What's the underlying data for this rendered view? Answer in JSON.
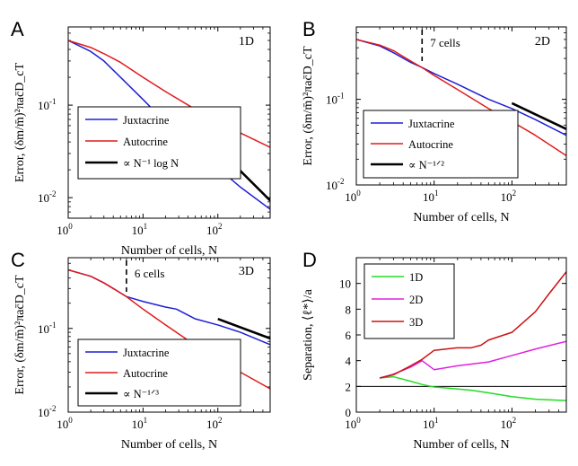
{
  "chart_data": [
    {
      "type": "line",
      "panel": "A",
      "dimension": "1D",
      "xlabel": "Number of cells, N",
      "ylabel": "Error, (δm/m̄)²πac̄D_cT",
      "xscale": "log",
      "yscale": "log",
      "xlim": [
        1,
        500
      ],
      "ylim": [
        0.006,
        0.7
      ],
      "xticks": [
        {
          "v": 1,
          "label": "10",
          "exp": "0"
        },
        {
          "v": 10,
          "label": "10",
          "exp": "1"
        },
        {
          "v": 100,
          "label": "10",
          "exp": "2"
        }
      ],
      "yticks": [
        {
          "v": 0.01,
          "label": "10",
          "exp": "-2"
        },
        {
          "v": 0.1,
          "label": "10",
          "exp": "-1"
        }
      ],
      "legend_position": "bottom-left",
      "series": [
        {
          "name": "Juxtacrine",
          "color": "#1f1fd6",
          "x": [
            1,
            2,
            3,
            5,
            10,
            20,
            50,
            100,
            200,
            500
          ],
          "y": [
            0.5,
            0.38,
            0.3,
            0.2,
            0.115,
            0.065,
            0.032,
            0.021,
            0.013,
            0.0075
          ]
        },
        {
          "name": "Autocrine",
          "color": "#e01b1b",
          "x": [
            1,
            2,
            3,
            5,
            10,
            20,
            50,
            100,
            200,
            500
          ],
          "y": [
            0.5,
            0.42,
            0.36,
            0.29,
            0.2,
            0.14,
            0.09,
            0.067,
            0.05,
            0.035
          ]
        },
        {
          "name": "∝ N⁻¹ log N",
          "color": "#000000",
          "x": [
            100,
            500
          ],
          "y": [
            0.034,
            0.0093
          ]
        }
      ],
      "annotations": []
    },
    {
      "type": "line",
      "panel": "B",
      "dimension": "2D",
      "xlabel": "Number of cells, N",
      "ylabel": "Error, (δm/m̄)²πac̄D_cT",
      "xscale": "log",
      "yscale": "log",
      "xlim": [
        1,
        500
      ],
      "ylim": [
        0.01,
        0.7
      ],
      "xticks": [
        {
          "v": 1,
          "label": "10",
          "exp": "0"
        },
        {
          "v": 10,
          "label": "10",
          "exp": "1"
        },
        {
          "v": 100,
          "label": "10",
          "exp": "2"
        }
      ],
      "yticks": [
        {
          "v": 0.01,
          "label": "10",
          "exp": "-2"
        },
        {
          "v": 0.1,
          "label": "10",
          "exp": "-1"
        }
      ],
      "legend_position": "bottom-left",
      "series": [
        {
          "name": "Juxtacrine",
          "color": "#1f1fd6",
          "x": [
            1,
            2,
            3,
            5,
            7,
            10,
            20,
            50,
            100,
            200,
            500
          ],
          "y": [
            0.5,
            0.42,
            0.35,
            0.27,
            0.235,
            0.2,
            0.15,
            0.1,
            0.078,
            0.058,
            0.038
          ]
        },
        {
          "name": "Autocrine",
          "color": "#e01b1b",
          "x": [
            1,
            2,
            3,
            5,
            7,
            10,
            20,
            50,
            100,
            200,
            500
          ],
          "y": [
            0.5,
            0.43,
            0.37,
            0.28,
            0.235,
            0.19,
            0.13,
            0.078,
            0.055,
            0.038,
            0.022
          ]
        },
        {
          "name": "∝ N⁻¹ᐟ²",
          "color": "#000000",
          "x": [
            100,
            500
          ],
          "y": [
            0.09,
            0.045
          ]
        }
      ],
      "annotations": [
        {
          "text": "7 cells",
          "x": 7
        }
      ]
    },
    {
      "type": "line",
      "panel": "C",
      "dimension": "3D",
      "xlabel": "Number of cells, N",
      "ylabel": "Error, (δm/m̄)²πac̄D_cT",
      "xscale": "log",
      "yscale": "log",
      "xlim": [
        1,
        500
      ],
      "ylim": [
        0.01,
        0.7
      ],
      "xticks": [
        {
          "v": 1,
          "label": "10",
          "exp": "0"
        },
        {
          "v": 10,
          "label": "10",
          "exp": "1"
        },
        {
          "v": 100,
          "label": "10",
          "exp": "2"
        }
      ],
      "yticks": [
        {
          "v": 0.01,
          "label": "10",
          "exp": "-2"
        },
        {
          "v": 0.1,
          "label": "10",
          "exp": "-1"
        }
      ],
      "legend_position": "bottom-left",
      "series": [
        {
          "name": "Juxtacrine",
          "color": "#1f1fd6",
          "x": [
            1,
            2,
            3,
            4,
            6,
            10,
            20,
            28,
            50,
            100,
            200,
            500
          ],
          "y": [
            0.5,
            0.42,
            0.35,
            0.3,
            0.24,
            0.21,
            0.18,
            0.17,
            0.13,
            0.11,
            0.09,
            0.064
          ]
        },
        {
          "name": "Autocrine",
          "color": "#e01b1b",
          "x": [
            1,
            2,
            3,
            4,
            6,
            10,
            20,
            50,
            100,
            200,
            500
          ],
          "y": [
            0.5,
            0.42,
            0.35,
            0.3,
            0.24,
            0.17,
            0.11,
            0.063,
            0.042,
            0.03,
            0.019
          ]
        },
        {
          "name": "∝ N⁻¹ᐟ³",
          "color": "#000000",
          "x": [
            100,
            500
          ],
          "y": [
            0.13,
            0.076
          ]
        }
      ],
      "annotations": [
        {
          "text": "6 cells",
          "x": 6
        }
      ]
    },
    {
      "type": "line",
      "panel": "D",
      "xlabel": "Number of cells, N",
      "ylabel": "Separation, ⟨ℓ*⟩/a",
      "xscale": "log",
      "yscale": "linear",
      "xlim": [
        1,
        500
      ],
      "ylim": [
        0,
        12
      ],
      "xticks": [
        {
          "v": 1,
          "label": "10",
          "exp": "0"
        },
        {
          "v": 10,
          "label": "10",
          "exp": "1"
        },
        {
          "v": 100,
          "label": "10",
          "exp": "2"
        }
      ],
      "yticks": [
        {
          "v": 0,
          "label": "0"
        },
        {
          "v": 2,
          "label": "2"
        },
        {
          "v": 4,
          "label": "4"
        },
        {
          "v": 6,
          "label": "6"
        },
        {
          "v": 8,
          "label": "8"
        },
        {
          "v": 10,
          "label": "10"
        }
      ],
      "legend_position": "top-left",
      "reference_line": 2,
      "series": [
        {
          "name": "1D",
          "color": "#22dd22",
          "x": [
            2,
            3,
            5,
            7,
            10,
            20,
            30,
            50,
            100,
            200,
            500
          ],
          "y": [
            2.65,
            2.75,
            2.4,
            2.15,
            1.95,
            1.8,
            1.7,
            1.5,
            1.2,
            1.0,
            0.9
          ]
        },
        {
          "name": "2D",
          "color": "#e020e0",
          "x": [
            2,
            3,
            5,
            7,
            10,
            20,
            50,
            100,
            200,
            500
          ],
          "y": [
            2.65,
            2.95,
            3.5,
            4.0,
            3.3,
            3.6,
            3.9,
            4.4,
            4.9,
            5.5
          ]
        },
        {
          "name": "3D",
          "color": "#cc1111",
          "x": [
            2,
            3,
            5,
            7,
            10,
            20,
            30,
            40,
            50,
            100,
            200,
            300,
            500
          ],
          "y": [
            2.65,
            2.9,
            3.6,
            4.1,
            4.8,
            5.0,
            5.0,
            5.2,
            5.6,
            6.2,
            7.8,
            9.2,
            10.9
          ]
        }
      ]
    }
  ]
}
